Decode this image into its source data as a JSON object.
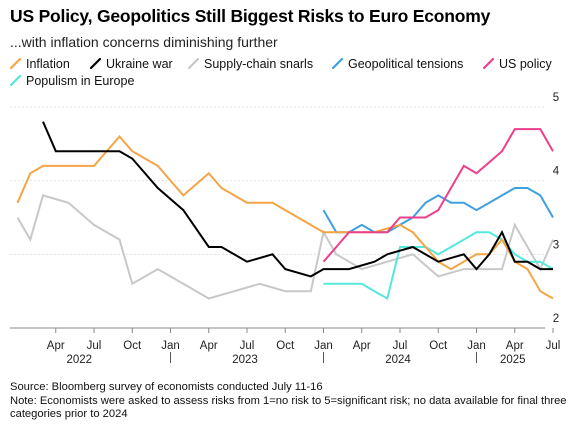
{
  "header": {
    "title": "US Policy, Geopolitics Still Biggest Risks to Euro Economy",
    "subtitle": "...with inflation concerns diminishing further"
  },
  "footer": {
    "source": "Source: Bloomberg survey of economists conducted July 11-16",
    "note": "Note: Economists were asked to assess risks from 1=no risk to 5=significant risk; no data available for final three categories prior to 2024"
  },
  "chart_data": {
    "type": "line",
    "title": "US Policy, Geopolitics Still Biggest Risks to Euro Economy",
    "subtitle": "...with inflation concerns diminishing further",
    "xlabel": "",
    "ylabel": "",
    "ylim": [
      2,
      5
    ],
    "yticks": [
      2,
      3,
      4,
      5
    ],
    "y_axis_side": "right",
    "grid": "horizontal",
    "x_axis_labels": {
      "months": [
        "Apr",
        "Jul",
        "Oct",
        "Jan",
        "Apr",
        "Jul",
        "Oct",
        "Jan",
        "Apr",
        "Jul",
        "Oct",
        "Jan",
        "Apr",
        "Jul"
      ],
      "years": [
        "2022",
        "2023",
        "2024",
        "2025"
      ]
    },
    "series": [
      {
        "name": "Inflation",
        "color": "#f5a445",
        "x": [
          "2022-01",
          "2022-02",
          "2022-03",
          "2022-05",
          "2022-07",
          "2022-09",
          "2022-10",
          "2022-12",
          "2023-01",
          "2023-02",
          "2023-04",
          "2023-05",
          "2023-07",
          "2023-09",
          "2023-11",
          "2024-01",
          "2024-03",
          "2024-05",
          "2024-07",
          "2024-08",
          "2024-10",
          "2024-11",
          "2025-01",
          "2025-02",
          "2025-03",
          "2025-04",
          "2025-05",
          "2025-06",
          "2025-07"
        ],
        "values": [
          3.7,
          4.1,
          4.2,
          4.2,
          4.2,
          4.6,
          4.4,
          4.2,
          4.0,
          3.8,
          4.1,
          3.9,
          3.7,
          3.7,
          3.5,
          3.3,
          3.3,
          3.3,
          3.4,
          3.3,
          2.9,
          2.8,
          3.0,
          3.0,
          3.2,
          2.9,
          2.8,
          2.5,
          2.4
        ]
      },
      {
        "name": "Ukraine war",
        "color": "#000000",
        "x": [
          "2022-03",
          "2022-04",
          "2022-05",
          "2022-07",
          "2022-09",
          "2022-10",
          "2022-12",
          "2023-02",
          "2023-04",
          "2023-05",
          "2023-07",
          "2023-09",
          "2023-10",
          "2023-12",
          "2024-01",
          "2024-03",
          "2024-05",
          "2024-06",
          "2024-08",
          "2024-10",
          "2024-12",
          "2025-01",
          "2025-02",
          "2025-03",
          "2025-04",
          "2025-05",
          "2025-06",
          "2025-07"
        ],
        "values": [
          4.8,
          4.4,
          4.4,
          4.4,
          4.4,
          4.3,
          3.9,
          3.6,
          3.1,
          3.1,
          2.9,
          3.0,
          2.8,
          2.7,
          2.8,
          2.8,
          2.9,
          3.0,
          3.1,
          2.9,
          3.0,
          2.8,
          3.0,
          3.3,
          2.9,
          2.9,
          2.8,
          2.8
        ]
      },
      {
        "name": "Supply-chain snarls",
        "color": "#c8c8c8",
        "x": [
          "2022-01",
          "2022-02",
          "2022-03",
          "2022-05",
          "2022-07",
          "2022-09",
          "2022-10",
          "2022-12",
          "2023-02",
          "2023-04",
          "2023-06",
          "2023-08",
          "2023-10",
          "2023-12",
          "2024-01",
          "2024-02",
          "2024-04",
          "2024-06",
          "2024-08",
          "2024-10",
          "2024-12",
          "2025-01",
          "2025-03",
          "2025-04",
          "2025-06",
          "2025-07"
        ],
        "values": [
          3.5,
          3.2,
          3.8,
          3.7,
          3.4,
          3.2,
          2.6,
          2.8,
          2.6,
          2.4,
          2.5,
          2.6,
          2.5,
          2.5,
          3.3,
          3.0,
          2.8,
          2.9,
          3.0,
          2.7,
          2.8,
          2.8,
          2.8,
          3.4,
          2.8,
          3.2
        ]
      },
      {
        "name": "Geopolitical tensions",
        "color": "#3f9fe0",
        "x": [
          "2024-01",
          "2024-02",
          "2024-03",
          "2024-04",
          "2024-05",
          "2024-06",
          "2024-07",
          "2024-08",
          "2024-09",
          "2024-10",
          "2024-11",
          "2024-12",
          "2025-01",
          "2025-02",
          "2025-03",
          "2025-04",
          "2025-05",
          "2025-06",
          "2025-07"
        ],
        "values": [
          3.6,
          3.3,
          3.3,
          3.4,
          3.3,
          3.3,
          3.4,
          3.5,
          3.7,
          3.8,
          3.7,
          3.7,
          3.6,
          3.7,
          3.8,
          3.9,
          3.9,
          3.8,
          3.5
        ]
      },
      {
        "name": "US policy",
        "color": "#ec3f8c",
        "x": [
          "2024-01",
          "2024-02",
          "2024-03",
          "2024-04",
          "2024-05",
          "2024-06",
          "2024-07",
          "2024-08",
          "2024-09",
          "2024-10",
          "2024-11",
          "2024-12",
          "2025-01",
          "2025-02",
          "2025-03",
          "2025-04",
          "2025-05",
          "2025-06",
          "2025-07"
        ],
        "values": [
          2.9,
          3.1,
          3.3,
          3.3,
          3.3,
          3.3,
          3.5,
          3.5,
          3.5,
          3.6,
          3.9,
          4.2,
          4.1,
          4.25,
          4.4,
          4.7,
          4.7,
          4.7,
          4.4
        ]
      },
      {
        "name": "Populism in Europe",
        "color": "#55e8dc",
        "x": [
          "2024-01",
          "2024-02",
          "2024-03",
          "2024-04",
          "2024-05",
          "2024-06",
          "2024-07",
          "2024-08",
          "2024-09",
          "2024-10",
          "2024-11",
          "2024-12",
          "2025-01",
          "2025-02",
          "2025-03",
          "2025-04",
          "2025-05",
          "2025-06",
          "2025-07"
        ],
        "values": [
          2.6,
          2.6,
          2.6,
          2.6,
          2.5,
          2.4,
          3.1,
          3.1,
          3.1,
          3.0,
          3.1,
          3.2,
          3.3,
          3.3,
          3.2,
          3.0,
          2.9,
          2.9,
          2.8
        ]
      }
    ]
  }
}
